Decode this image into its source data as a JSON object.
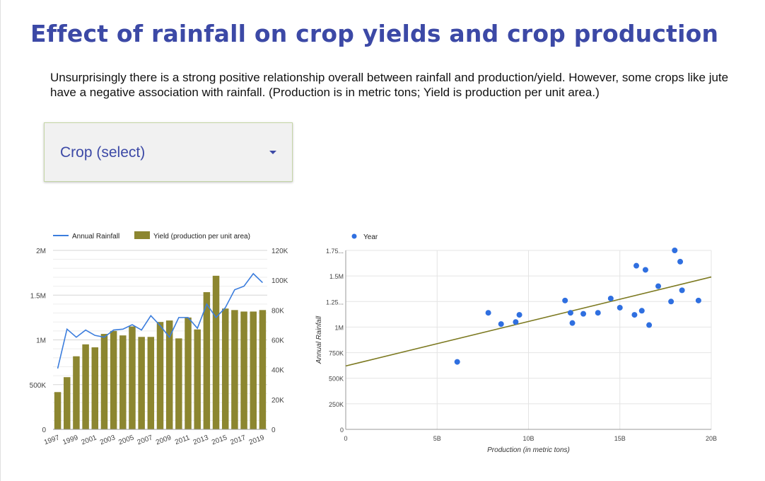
{
  "page": {
    "title": "Effect of rainfall on crop yields and crop production",
    "description": "Unsurprisingly there is a strong positive relationship overall between rainfall and production/yield. However, some crops like jute have a negative association with rainfall. (Production is in metric tons; Yield is production per unit area.)"
  },
  "filter": {
    "label": "Crop (select)",
    "icon": "chevron-down-icon"
  },
  "colors": {
    "title": "#3c49a6",
    "rainfall_line": "#3b7ddd",
    "yield_bar": "#8c8630",
    "scatter_point": "#2f6fe0",
    "trendline": "#7d7a22",
    "grid": "#e4e4e4"
  },
  "chart_data": [
    {
      "type": "bar",
      "combo": "bar+line",
      "categories": [
        "1997",
        "1998",
        "1999",
        "2000",
        "2001",
        "2002",
        "2003",
        "2004",
        "2005",
        "2006",
        "2007",
        "2008",
        "2009",
        "2010",
        "2011",
        "2012",
        "2013",
        "2014",
        "2015",
        "2016",
        "2017",
        "2018",
        "2019"
      ],
      "x_tick_labels": [
        "1997",
        "1999",
        "2001",
        "2003",
        "2005",
        "2007",
        "2009",
        "2011",
        "2013",
        "2015",
        "2017",
        "2019"
      ],
      "series": [
        {
          "name": "Annual Rainfall",
          "type": "line",
          "axis": "left",
          "values": [
            680000,
            1120000,
            1030000,
            1110000,
            1050000,
            1030000,
            1110000,
            1120000,
            1170000,
            1110000,
            1270000,
            1160000,
            1030000,
            1250000,
            1250000,
            1130000,
            1400000,
            1250000,
            1360000,
            1560000,
            1600000,
            1740000,
            1640000
          ]
        },
        {
          "name": "Yield (production per unit area)",
          "type": "bar",
          "axis": "right",
          "values": [
            25000,
            35000,
            49000,
            57000,
            55000,
            64000,
            66000,
            63000,
            69000,
            62000,
            62000,
            72000,
            73000,
            61000,
            75000,
            67000,
            92000,
            103000,
            81000,
            80000,
            79000,
            79000,
            80000
          ]
        }
      ],
      "y_left": {
        "ylim": [
          0,
          2000000
        ],
        "ticks": [
          0,
          500000,
          1000000,
          1500000,
          2000000
        ],
        "tick_labels": [
          "0",
          "500K",
          "1M",
          "1.5M",
          "2M"
        ]
      },
      "y_right": {
        "ylim": [
          0,
          120000
        ],
        "ticks": [
          0,
          20000,
          40000,
          60000,
          80000,
          100000,
          120000
        ],
        "tick_labels": [
          "0",
          "20K",
          "40K",
          "60K",
          "80K",
          "100K",
          "120K"
        ]
      },
      "legend": "top",
      "grid": true
    },
    {
      "type": "scatter",
      "xlabel": "Production (in metric tons)",
      "ylabel": "Annual Rainfall",
      "xlim": [
        0,
        20000000000
      ],
      "ylim": [
        0,
        1750000
      ],
      "x_tick_labels": [
        "0",
        "5B",
        "10B",
        "15B",
        "20B"
      ],
      "y_tick_labels": [
        "0",
        "250K",
        "500K",
        "750K",
        "1M",
        "1.25...",
        "1.5M",
        "1.75..."
      ],
      "series": [
        {
          "name": "Year",
          "points": [
            [
              6100000000.0,
              660000
            ],
            [
              7800000000.0,
              1140000
            ],
            [
              8500000000.0,
              1030000
            ],
            [
              9300000000.0,
              1050000
            ],
            [
              9500000000.0,
              1120000
            ],
            [
              12000000000.0,
              1260000
            ],
            [
              12300000000.0,
              1140000
            ],
            [
              12400000000.0,
              1040000
            ],
            [
              13000000000.0,
              1130000
            ],
            [
              13800000000.0,
              1140000
            ],
            [
              14500000000.0,
              1280000
            ],
            [
              15000000000.0,
              1190000
            ],
            [
              15800000000.0,
              1120000
            ],
            [
              15900000000.0,
              1600000
            ],
            [
              16200000000.0,
              1160000
            ],
            [
              16400000000.0,
              1560000
            ],
            [
              16600000000.0,
              1020000
            ],
            [
              17100000000.0,
              1400000
            ],
            [
              17800000000.0,
              1250000
            ],
            [
              18000000000.0,
              1750000
            ],
            [
              18300000000.0,
              1640000
            ],
            [
              18400000000.0,
              1360000
            ],
            [
              19300000000.0,
              1260000
            ]
          ]
        }
      ],
      "trendline": {
        "x": [
          0,
          20000000000
        ],
        "y": [
          620000,
          1490000
        ]
      },
      "legend": "top",
      "grid": true
    }
  ]
}
